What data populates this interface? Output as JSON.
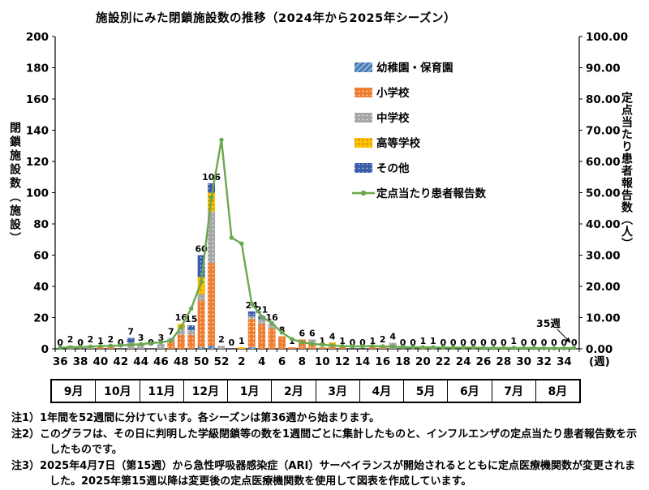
{
  "title": "施設別にみた閉鎖施設数の推移（2024年から2025年シーズン）",
  "chart_data": {
    "type": "combo_stacked_bar_line",
    "title": "施設別にみた閉鎖施設数の推移（2024年から2025年シーズン）",
    "weeks": [
      36,
      37,
      38,
      39,
      40,
      41,
      42,
      43,
      44,
      45,
      46,
      47,
      48,
      49,
      50,
      51,
      52,
      1,
      2,
      3,
      4,
      5,
      6,
      7,
      8,
      9,
      10,
      11,
      12,
      13,
      14,
      15,
      16,
      17,
      18,
      19,
      20,
      21,
      22,
      23,
      24,
      25,
      26,
      27,
      28,
      29,
      30,
      31,
      32,
      33,
      34,
      35
    ],
    "totals": [
      0,
      2,
      0,
      2,
      1,
      2,
      0,
      7,
      3,
      0,
      3,
      7,
      16,
      15,
      60,
      106,
      2,
      0,
      1,
      24,
      21,
      16,
      8,
      1,
      6,
      6,
      1,
      4,
      1,
      0,
      0,
      1,
      2,
      4,
      0,
      0,
      1,
      1,
      0,
      0,
      0,
      0,
      0,
      0,
      0,
      1,
      0,
      0,
      0,
      0,
      0,
      0
    ],
    "series": [
      {
        "name": "幼稚園・保育園",
        "color": "#5B9BD5",
        "pattern": "diagonal-hatch",
        "values": [
          0,
          0,
          0,
          0,
          0,
          0,
          0,
          0,
          0,
          0,
          0,
          0,
          0,
          0,
          1,
          2,
          0,
          0,
          0,
          1,
          0,
          0,
          0,
          0,
          0,
          0,
          0,
          0,
          0,
          0,
          0,
          0,
          0,
          0,
          0,
          0,
          0,
          0,
          0,
          0,
          0,
          0,
          0,
          0,
          0,
          0,
          0,
          0,
          0,
          0,
          0,
          0
        ]
      },
      {
        "name": "小学校",
        "color": "#ED7D31",
        "pattern": "dots",
        "values": [
          0,
          0,
          0,
          0,
          1,
          1,
          0,
          0,
          0,
          0,
          0,
          5,
          9,
          9,
          30,
          53,
          0,
          0,
          0,
          18,
          16,
          13,
          8,
          1,
          6,
          4,
          1,
          2,
          1,
          0,
          0,
          1,
          1,
          0,
          0,
          0,
          1,
          0,
          0,
          0,
          0,
          0,
          0,
          0,
          0,
          1,
          0,
          0,
          0,
          0,
          0,
          0
        ]
      },
      {
        "name": "中学校",
        "color": "#A6A6A6",
        "pattern": "dots",
        "values": [
          0,
          2,
          0,
          2,
          0,
          1,
          0,
          4,
          3,
          0,
          3,
          2,
          4,
          3,
          4,
          33,
          2,
          0,
          0,
          2,
          3,
          3,
          0,
          0,
          0,
          2,
          0,
          0,
          0,
          0,
          0,
          0,
          0,
          4,
          0,
          0,
          0,
          1,
          0,
          0,
          0,
          0,
          0,
          0,
          0,
          0,
          0,
          0,
          0,
          0,
          0,
          0
        ]
      },
      {
        "name": "高等学校",
        "color": "#FFC000",
        "pattern": "dots",
        "values": [
          0,
          0,
          0,
          0,
          0,
          0,
          0,
          0,
          0,
          0,
          0,
          0,
          3,
          0,
          11,
          12,
          0,
          0,
          1,
          0,
          0,
          0,
          0,
          0,
          0,
          0,
          0,
          2,
          0,
          0,
          0,
          0,
          1,
          0,
          0,
          0,
          0,
          0,
          0,
          0,
          0,
          0,
          0,
          0,
          0,
          0,
          0,
          0,
          0,
          0,
          0,
          0
        ]
      },
      {
        "name": "その他",
        "color": "#3B5CA8",
        "pattern": "dots",
        "values": [
          0,
          0,
          0,
          0,
          0,
          0,
          0,
          3,
          0,
          0,
          0,
          0,
          0,
          3,
          14,
          6,
          0,
          0,
          0,
          3,
          2,
          0,
          0,
          0,
          0,
          0,
          0,
          0,
          0,
          0,
          0,
          0,
          0,
          0,
          0,
          0,
          0,
          0,
          0,
          0,
          0,
          0,
          0,
          0,
          0,
          0,
          0,
          0,
          0,
          0,
          0,
          0
        ]
      }
    ],
    "line_series": {
      "name": "定点当たり患者報告数",
      "color": "#6AA84F",
      "values": [
        0.4,
        0.5,
        0.6,
        0.7,
        0.9,
        1.0,
        1.1,
        1.3,
        1.5,
        1.8,
        2.1,
        2.6,
        7.0,
        12.9,
        21.4,
        48.4,
        66.9,
        35.6,
        33.7,
        14.5,
        10.3,
        8.2,
        5.2,
        3.1,
        2.1,
        1.6,
        1.3,
        1.1,
        0.9,
        0.8,
        0.8,
        0.9,
        0.8,
        0.7,
        0.6,
        0.5,
        0.5,
        0.5,
        0.4,
        0.4,
        0.4,
        0.4,
        0.3,
        0.3,
        0.3,
        0.3,
        0.3,
        0.3,
        0.2,
        0.2,
        0.2,
        0.3
      ]
    },
    "left_axis": {
      "title": "閉鎖施設数（施設）",
      "min": 0,
      "max": 200,
      "step": 20
    },
    "right_axis": {
      "title": "定点当たり患者報告数（人）",
      "min": 0,
      "max": 100,
      "step": 10,
      "format": "0.00"
    },
    "x_axis": {
      "tick_labels": [
        "36",
        "38",
        "40",
        "42",
        "44",
        "46",
        "48",
        "50",
        "52",
        "2",
        "4",
        "6",
        "8",
        "10",
        "12",
        "14",
        "16",
        "18",
        "20",
        "22",
        "24",
        "26",
        "28",
        "30",
        "32",
        "34"
      ],
      "unit_label": "(週)"
    },
    "months": [
      "9月",
      "10月",
      "11月",
      "12月",
      "1月",
      "2月",
      "3月",
      "4月",
      "5月",
      "6月",
      "7月",
      "8月"
    ],
    "annotation": {
      "text": "35週",
      "points_to_week": 35
    },
    "legend_position": "inside-upper-middle",
    "grid": "off"
  },
  "notes": [
    "注1）1年間を52週間に分けています。各シーズンは第36週から始まります。",
    "注2）このグラフは、その日に判明した学級閉鎖等の数を1週間ごとに集計したものと、インフルエンザの定点当たり患者報告数を示したものです。",
    "注3）2025年4月7日（第15週）から急性呼吸器感染症（ARI）サーベイランスが開始されるとともに定点医療機関数が変更されました。2025年第15週以降は変更後の定点医療機関数を使用して図表を作成しています。"
  ]
}
